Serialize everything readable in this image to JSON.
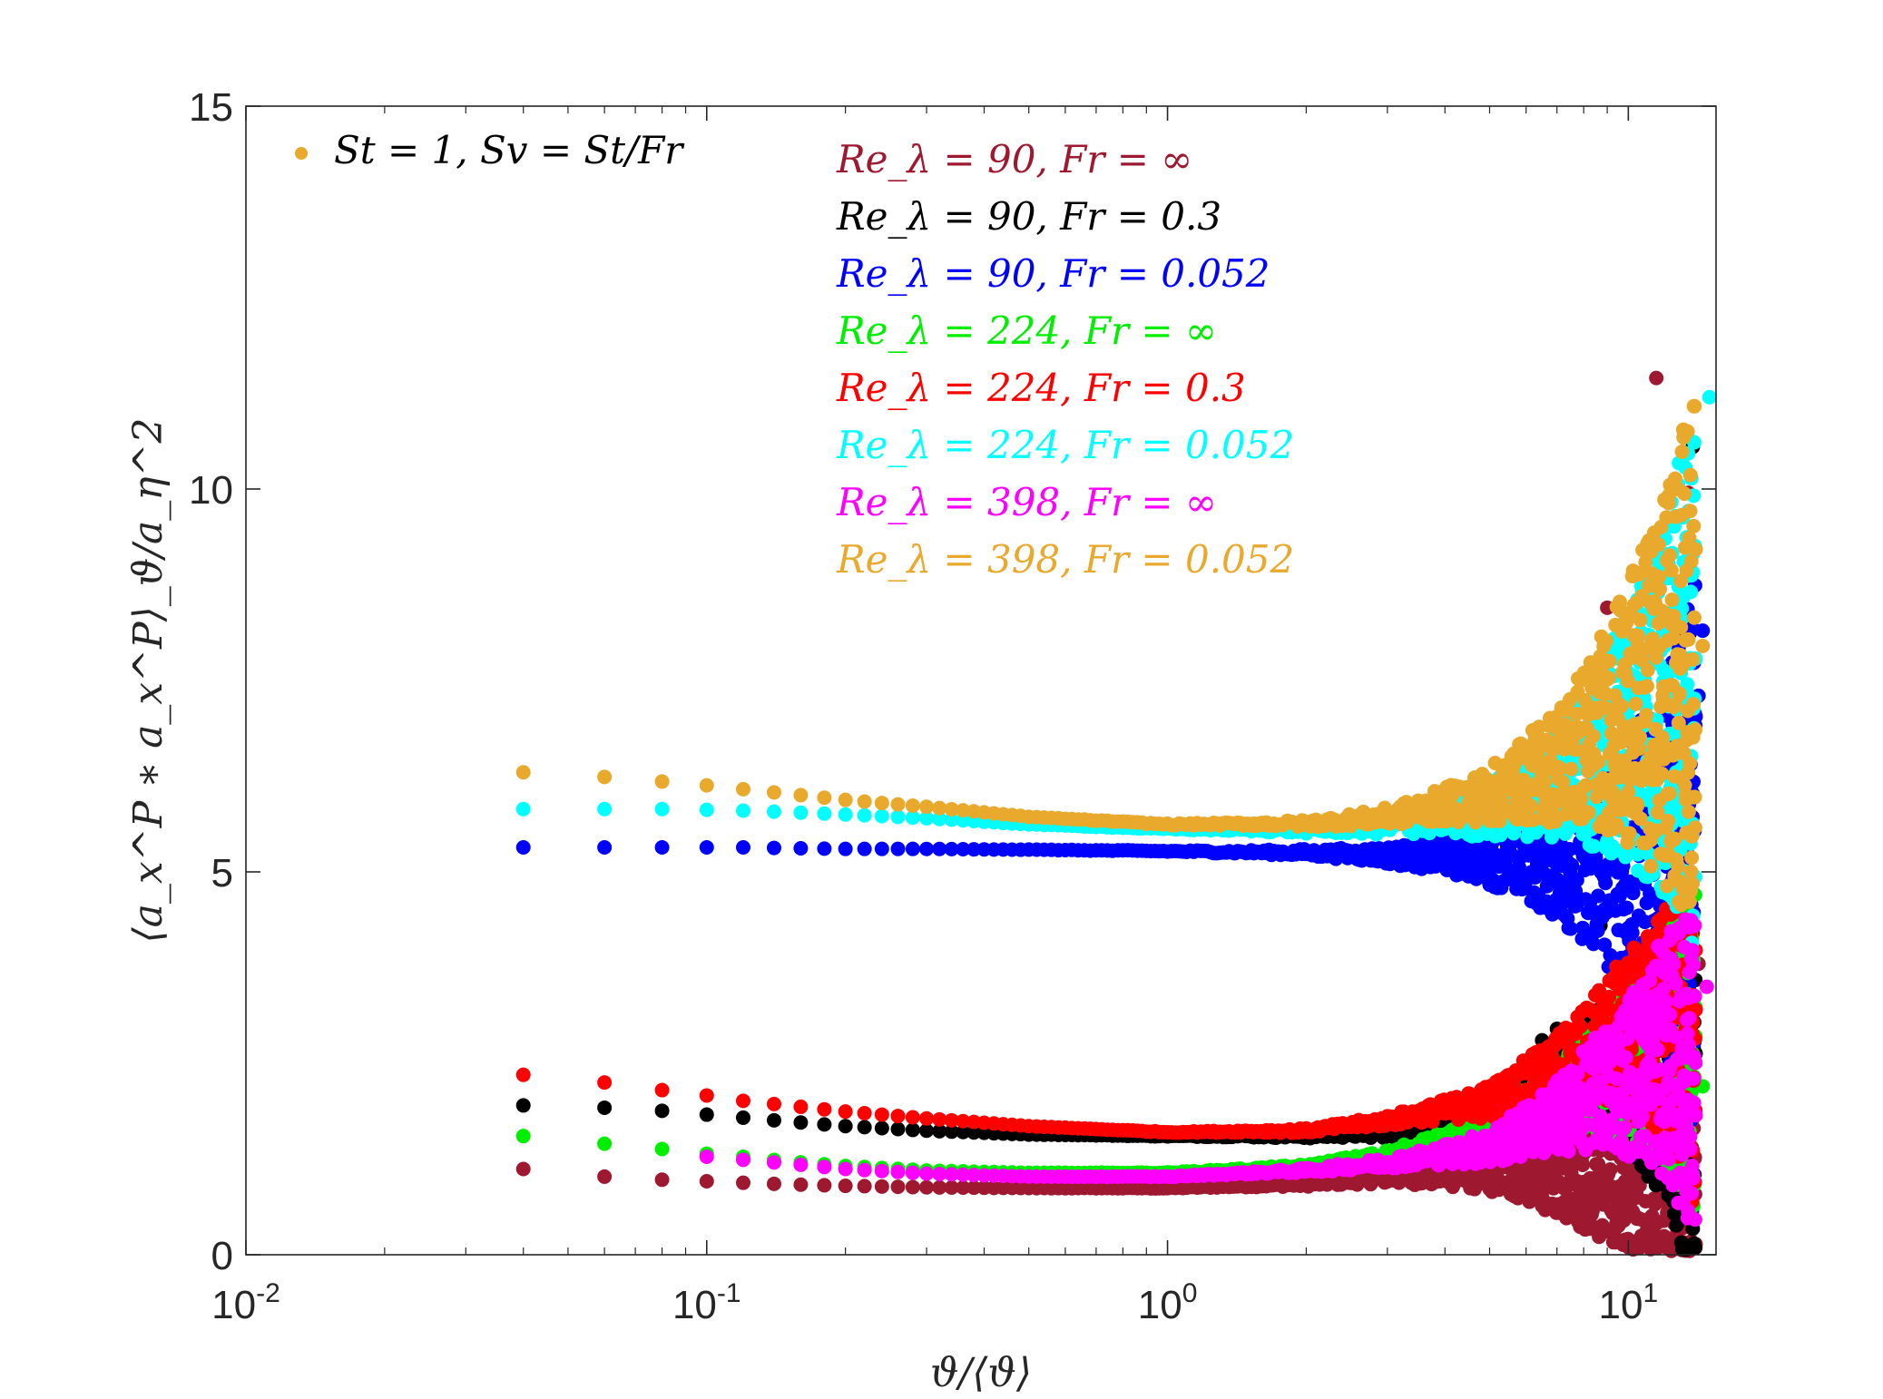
{
  "chart_data": {
    "type": "scatter",
    "title": "",
    "xlabel": "ϑ/⟨ϑ⟩",
    "ylabel": "⟨a_x^P ∗ a_x^P⟩_ϑ/a_η^2",
    "x_scale": "log",
    "xlim": [
      0.01,
      15.5
    ],
    "ylim": [
      0,
      15
    ],
    "grid": false,
    "x_ticks": [
      {
        "value": 0.01,
        "base": "10",
        "exp": "-2"
      },
      {
        "value": 0.1,
        "base": "10",
        "exp": "-1"
      },
      {
        "value": 1,
        "base": "10",
        "exp": "0"
      },
      {
        "value": 10,
        "base": "10",
        "exp": "1"
      }
    ],
    "y_ticks": [
      {
        "value": 0,
        "label": "0"
      },
      {
        "value": 5,
        "label": "5"
      },
      {
        "value": 10,
        "label": "10"
      },
      {
        "value": 15,
        "label": "15"
      }
    ],
    "annotation": {
      "text": "St = 1, Sv = St/Fr",
      "color": "#E8A92C",
      "placement": "top-left"
    },
    "legend_placement": "top-center",
    "series": [
      {
        "name": "Re_λ = 90, Fr = ∞",
        "color": "#9E1830",
        "x": [
          0.04,
          0.06,
          0.08,
          0.1,
          0.12,
          0.15,
          0.2,
          0.3,
          0.5,
          1,
          2,
          3,
          5,
          7,
          9,
          12,
          14
        ],
        "y": [
          1.12,
          1.02,
          0.98,
          0.96,
          0.94,
          0.92,
          0.9,
          0.88,
          0.87,
          0.87,
          0.92,
          1.0,
          1.05,
          1.0,
          0.95,
          0.9,
          0.85
        ],
        "outliers": {
          "x": [
            11.5,
            13.5,
            9.0,
            13.0,
            11.0,
            13.8,
            14.2,
            9.5,
            12.5
          ],
          "y": [
            11.45,
            9.95,
            8.45,
            7.2,
            6.9,
            4.2,
            3.8,
            3.6,
            0.2
          ]
        }
      },
      {
        "name": "Re_λ = 90, Fr = 0.3",
        "color": "#000000",
        "x": [
          0.04,
          0.06,
          0.08,
          0.1,
          0.12,
          0.15,
          0.2,
          0.3,
          0.5,
          1,
          2,
          3,
          5,
          7,
          9,
          12,
          14
        ],
        "y": [
          1.95,
          1.92,
          1.88,
          1.83,
          1.79,
          1.74,
          1.68,
          1.62,
          1.57,
          1.55,
          1.55,
          1.6,
          1.8,
          2.1,
          2.6,
          2.2,
          1.6
        ],
        "outliers": {
          "x": [
            13.8,
            12.5,
            8.7,
            9.2,
            10.5,
            6.5,
            7.0,
            9.8,
            13.5
          ],
          "y": [
            10.55,
            7.4,
            4.3,
            3.8,
            6.0,
            2.8,
            2.95,
            3.3,
            0.1
          ]
        }
      },
      {
        "name": "Re_λ = 90, Fr = 0.052",
        "color": "#0000FF",
        "x": [
          0.04,
          0.06,
          0.08,
          0.1,
          0.12,
          0.15,
          0.2,
          0.3,
          0.5,
          1,
          2,
          3,
          5,
          7,
          9,
          12,
          14
        ],
        "y": [
          5.32,
          5.32,
          5.32,
          5.32,
          5.32,
          5.31,
          5.3,
          5.3,
          5.29,
          5.27,
          5.25,
          5.22,
          5.2,
          5.15,
          5.1,
          5.0,
          5.2
        ],
        "outliers": {
          "x": [
            14.5,
            14.2,
            13.0,
            11.5,
            10.5,
            13.6
          ],
          "y": [
            8.15,
            7.3,
            4.4,
            4.2,
            6.5,
            3.9
          ]
        }
      },
      {
        "name": "Re_λ = 224, Fr = ∞",
        "color": "#00EE00",
        "x": [
          0.04,
          0.06,
          0.08,
          0.1,
          0.12,
          0.15,
          0.2,
          0.3,
          0.5,
          1,
          2,
          3,
          5,
          7,
          9,
          12,
          14
        ],
        "y": [
          1.55,
          1.45,
          1.38,
          1.32,
          1.28,
          1.22,
          1.16,
          1.1,
          1.07,
          1.07,
          1.15,
          1.3,
          1.6,
          2.0,
          2.4,
          2.8,
          2.6
        ],
        "outliers": {
          "x": [
            12.0,
            13.5,
            14.5
          ],
          "y": [
            3.0,
            3.3,
            2.2
          ]
        }
      },
      {
        "name": "Re_λ = 224, Fr = 0.3",
        "color": "#FF0000",
        "x": [
          0.04,
          0.06,
          0.08,
          0.1,
          0.12,
          0.15,
          0.2,
          0.3,
          0.5,
          1,
          2,
          3,
          5,
          7,
          9,
          12,
          14
        ],
        "y": [
          2.35,
          2.25,
          2.15,
          2.08,
          2.01,
          1.95,
          1.87,
          1.78,
          1.68,
          1.6,
          1.62,
          1.75,
          2.0,
          2.4,
          2.8,
          3.0,
          2.8
        ],
        "outliers": {
          "x": [
            13.0,
            14.0
          ],
          "y": [
            3.5,
            3.2
          ]
        }
      },
      {
        "name": "Re_λ = 224, Fr = 0.052",
        "color": "#00FFFF",
        "x": [
          0.04,
          0.06,
          0.08,
          0.1,
          0.12,
          0.15,
          0.2,
          0.3,
          0.5,
          1,
          2,
          3,
          5,
          7,
          9,
          12,
          14
        ],
        "y": [
          5.82,
          5.82,
          5.82,
          5.81,
          5.8,
          5.78,
          5.75,
          5.7,
          5.62,
          5.56,
          5.55,
          5.6,
          5.8,
          6.2,
          6.6,
          7.2,
          7.5
        ],
        "outliers": {
          "x": [
            15.0,
            13.8,
            13.2,
            12.0,
            12.5,
            10.0
          ],
          "y": [
            11.2,
            9.15,
            9.05,
            7.95,
            8.4,
            7.0
          ]
        }
      },
      {
        "name": "Re_λ = 398, Fr = ∞",
        "color": "#FF00FF",
        "x": [
          0.1,
          0.12,
          0.15,
          0.2,
          0.3,
          0.5,
          1,
          2,
          3,
          5,
          7,
          9,
          12,
          14
        ],
        "y": [
          1.28,
          1.24,
          1.19,
          1.12,
          1.06,
          1.02,
          1.02,
          1.1,
          1.2,
          1.4,
          1.8,
          2.2,
          2.6,
          2.4
        ],
        "outliers": {
          "x": [
            14.8
          ],
          "y": [
            3.5
          ]
        }
      },
      {
        "name": "Re_λ = 398, Fr = 0.052",
        "color": "#E8A92C",
        "x": [
          0.04,
          0.06,
          0.08,
          0.1,
          0.12,
          0.15,
          0.2,
          0.3,
          0.5,
          1,
          2,
          3,
          5,
          7,
          9,
          12,
          14
        ],
        "y": [
          6.3,
          6.24,
          6.18,
          6.13,
          6.08,
          6.02,
          5.94,
          5.85,
          5.72,
          5.62,
          5.63,
          5.72,
          6.0,
          6.4,
          6.9,
          7.4,
          7.8
        ],
        "outliers": {
          "x": [
            13.0,
            9.5,
            14.5,
            11.5
          ],
          "y": [
            8.8,
            7.0,
            7.95,
            7.8
          ]
        }
      }
    ]
  }
}
